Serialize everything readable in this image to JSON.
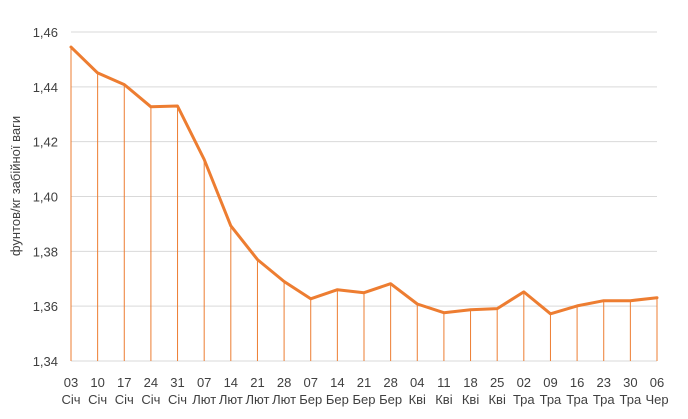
{
  "chart_data": {
    "type": "line",
    "title": "",
    "xlabel": "",
    "ylabel": "фунтов/кг забійної ваги",
    "ylim": [
      1.34,
      1.46
    ],
    "yticks": [
      "1,34",
      "1,36",
      "1,38",
      "1,40",
      "1,42",
      "1,44",
      "1,46"
    ],
    "grid": true,
    "drop_lines": true,
    "categories": [
      {
        "day": "03",
        "month": "Січ"
      },
      {
        "day": "10",
        "month": "Січ"
      },
      {
        "day": "17",
        "month": "Січ"
      },
      {
        "day": "24",
        "month": "Січ"
      },
      {
        "day": "31",
        "month": "Січ"
      },
      {
        "day": "07",
        "month": "Лют"
      },
      {
        "day": "14",
        "month": "Лют"
      },
      {
        "day": "21",
        "month": "Лют"
      },
      {
        "day": "28",
        "month": "Лют"
      },
      {
        "day": "07",
        "month": "Бер"
      },
      {
        "day": "14",
        "month": "Бер"
      },
      {
        "day": "21",
        "month": "Бер"
      },
      {
        "day": "28",
        "month": "Бер"
      },
      {
        "day": "04",
        "month": "Кві"
      },
      {
        "day": "11",
        "month": "Кві"
      },
      {
        "day": "18",
        "month": "Кві"
      },
      {
        "day": "25",
        "month": "Кві"
      },
      {
        "day": "02",
        "month": "Тра"
      },
      {
        "day": "09",
        "month": "Тра"
      },
      {
        "day": "16",
        "month": "Тра"
      },
      {
        "day": "23",
        "month": "Тра"
      },
      {
        "day": "30",
        "month": "Тра"
      },
      {
        "day": "06",
        "month": "Чер"
      }
    ],
    "series": [
      {
        "color": "#ED7D31",
        "values": [
          1.4545,
          1.4451,
          1.4408,
          1.4327,
          1.433,
          1.4135,
          1.3893,
          1.377,
          1.369,
          1.3627,
          1.366,
          1.3649,
          1.3682,
          1.3608,
          1.3576,
          1.3587,
          1.3591,
          1.3652,
          1.3572,
          1.3601,
          1.362,
          1.362,
          1.3631
        ]
      }
    ]
  }
}
